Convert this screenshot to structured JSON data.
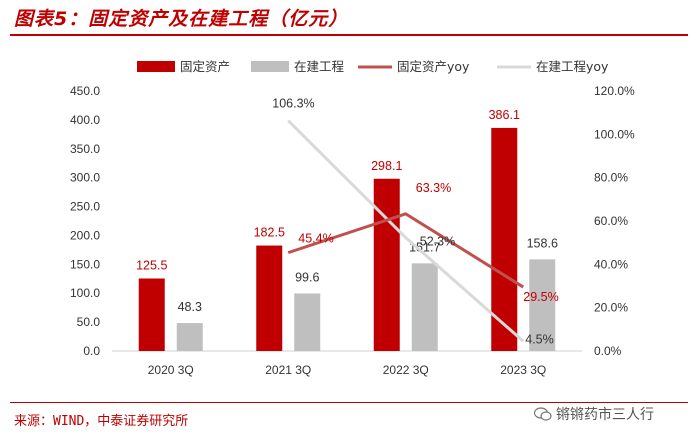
{
  "header": {
    "title": "图表5：固定资产及在建工程（亿元）"
  },
  "footer": {
    "source": "来源：WIND，中泰证券研究所",
    "watermark": "锵锵药市三人行"
  },
  "colors": {
    "accent": "#c00000",
    "fixed_bar": "#c00000",
    "construction_bar": "#bfbfbf",
    "fixed_yoy_line": "#c0504d",
    "construction_yoy_line": "#d9d9d9"
  },
  "chart_data": {
    "type": "bar",
    "categories": [
      "2020 3Q",
      "2021 3Q",
      "2022 3Q",
      "2023 3Q"
    ],
    "series": [
      {
        "name": "固定资产",
        "kind": "bar",
        "axis": "left",
        "values": [
          125.5,
          182.5,
          298.1,
          386.1
        ],
        "labels": [
          "125.5",
          "182.5",
          "298.1",
          "386.1"
        ]
      },
      {
        "name": "在建工程",
        "kind": "bar",
        "axis": "left",
        "values": [
          48.3,
          99.6,
          151.7,
          158.6
        ],
        "labels": [
          "48.3",
          "99.6",
          "151.7",
          "158.6"
        ]
      },
      {
        "name": "固定资产yoy",
        "kind": "line",
        "axis": "right",
        "values": [
          null,
          45.4,
          63.3,
          29.5
        ],
        "labels": [
          "",
          "45.4%",
          "63.3%",
          "29.5%"
        ]
      },
      {
        "name": "在建工程yoy",
        "kind": "line",
        "axis": "right",
        "values": [
          null,
          106.3,
          52.3,
          4.5
        ],
        "labels": [
          "",
          "106.3%",
          "52.3%",
          "4.5%"
        ]
      }
    ],
    "ylim": [
      0,
      450
    ],
    "y_ticks": [
      "0.0",
      "50.0",
      "100.0",
      "150.0",
      "200.0",
      "250.0",
      "300.0",
      "350.0",
      "400.0",
      "450.0"
    ],
    "y2lim": [
      0,
      120
    ],
    "y2_ticks": [
      "0.0%",
      "20.0%",
      "40.0%",
      "60.0%",
      "80.0%",
      "100.0%",
      "120.0%"
    ],
    "grid": false,
    "legend_position": "top"
  }
}
